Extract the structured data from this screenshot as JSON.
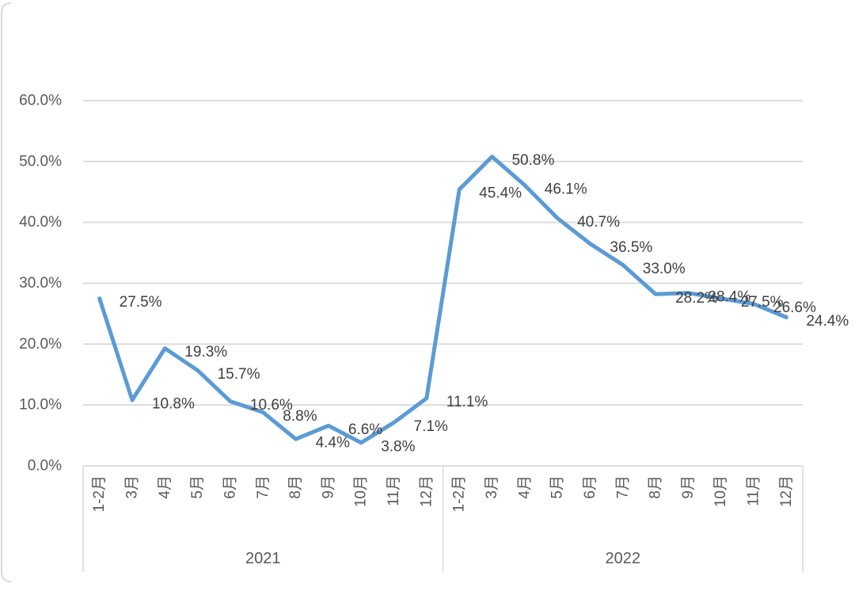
{
  "chart_data": {
    "type": "line",
    "title": "",
    "legend_position": "none",
    "grid": true,
    "line_color": "#5B9BD5",
    "grid_color": "#D9D9D9",
    "frame_color": "#D9D9D9",
    "axis_text_color": "#595959",
    "data_label_color": "#404040",
    "y_axis": {
      "min": 0,
      "max": 60,
      "step": 10,
      "tick_labels": [
        "0.0%",
        "10.0%",
        "20.0%",
        "30.0%",
        "40.0%",
        "50.0%",
        "60.0%"
      ]
    },
    "x_axis": {
      "month_labels": [
        "1-2月",
        "3月",
        "4月",
        "5月",
        "6月",
        "7月",
        "8月",
        "9月",
        "10月",
        "11月",
        "12月"
      ]
    },
    "series": [
      {
        "year": "2021",
        "values": [
          27.5,
          10.8,
          19.3,
          15.7,
          10.6,
          8.8,
          4.4,
          6.6,
          3.8,
          7.1,
          11.1
        ],
        "labels": [
          "27.5%",
          "10.8%",
          "19.3%",
          "15.7%",
          "10.6%",
          "8.8%",
          "4.4%",
          "6.6%",
          "3.8%",
          "7.1%",
          "11.1%"
        ]
      },
      {
        "year": "2022",
        "values": [
          45.4,
          50.8,
          46.1,
          40.7,
          36.5,
          33.0,
          28.2,
          28.4,
          27.5,
          26.6,
          24.4
        ],
        "labels": [
          "45.4%",
          "50.8%",
          "46.1%",
          "40.7%",
          "36.5%",
          "33.0%",
          "28.2%",
          "28.4%",
          "27.5%",
          "26.6%",
          "24.4%"
        ]
      }
    ]
  }
}
